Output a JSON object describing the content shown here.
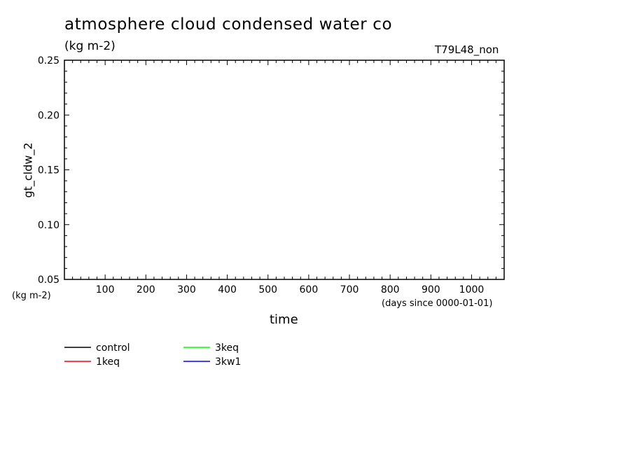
{
  "chart_data": {
    "type": "line",
    "title": "atmosphere cloud condensed water co",
    "subtitle": "(kg m-2)",
    "run_label": "T79L48_non",
    "ylabel": "gt_cldw_2",
    "yunit": "(kg m-2)",
    "xlabel": "time",
    "xunit": "(days since 0000-01-01)",
    "xlim": [
      0,
      1080
    ],
    "ylim": [
      0.05,
      0.25
    ],
    "xticks": [
      100,
      200,
      300,
      400,
      500,
      600,
      700,
      800,
      900,
      1000
    ],
    "yticks": [
      0.05,
      0.1,
      0.15,
      0.2,
      0.25
    ],
    "ytick_labels": [
      "0.05",
      "0.10",
      "0.15",
      "0.20",
      "0.25"
    ],
    "grid": false,
    "legend_position": "bottom-left",
    "series": [
      {
        "name": "control",
        "color": "#000000",
        "x": [],
        "y": []
      },
      {
        "name": "1keq",
        "color": "#ff0000",
        "x": [],
        "y": []
      },
      {
        "name": "3keq",
        "color": "#00ff00",
        "x": [],
        "y": []
      },
      {
        "name": "3kw1",
        "color": "#0000ff",
        "x": [],
        "y": []
      }
    ]
  }
}
